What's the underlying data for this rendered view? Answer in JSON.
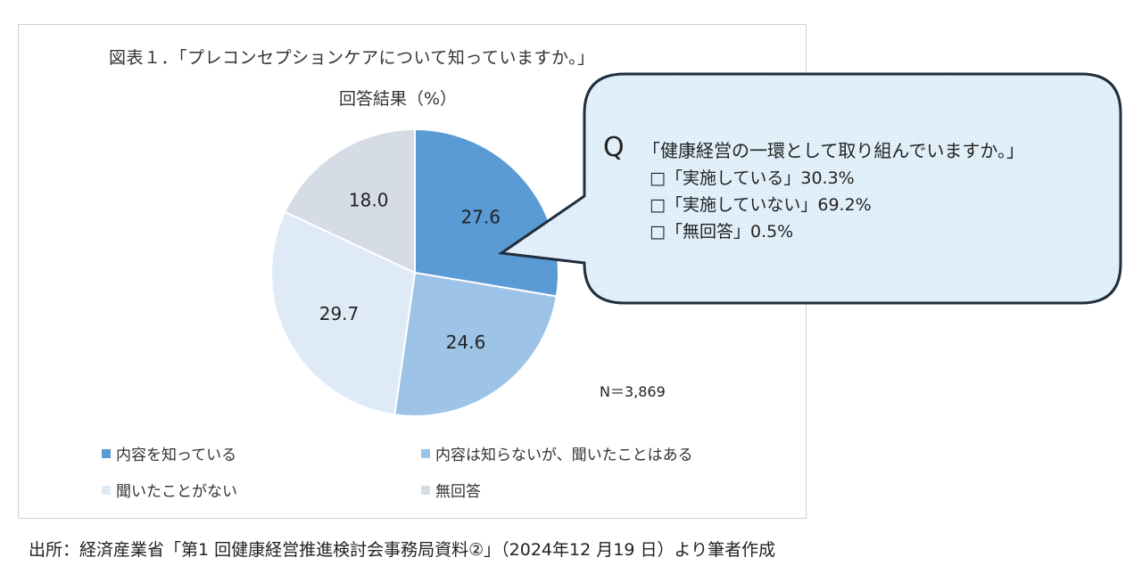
{
  "chart_data": {
    "type": "pie",
    "title": "図表１．「プレコンセプションケアについて知っていますか。」",
    "subtitle": "回答結果（%）",
    "slices": [
      {
        "label": "内容を知っている",
        "value": 27.6,
        "display": "27.6",
        "color": "#5b9bd5"
      },
      {
        "label": "内容は知らないが、聞いたことはある",
        "value": 24.6,
        "display": "24.6",
        "color": "#9dc3e6"
      },
      {
        "label": "聞いたことがない",
        "value": 29.7,
        "display": "29.7",
        "color": "#deebf7"
      },
      {
        "label": "無回答",
        "value": 18.0,
        "display": "18.0",
        "color": "#d6dce5"
      }
    ],
    "legend_position": "bottom",
    "note": "N＝3,869"
  },
  "callout": {
    "q_mark": "Q",
    "question": "「健康経営の一環として取り組んでいますか。」",
    "options": [
      "□「実施している」30.3%",
      "□「実施していない」69.2%",
      "□「無回答」0.5%"
    ]
  },
  "source": "出所：経済産業省「第1 回健康経営推進検討会事務局資料②」（2024年12 月19 日）より筆者作成"
}
